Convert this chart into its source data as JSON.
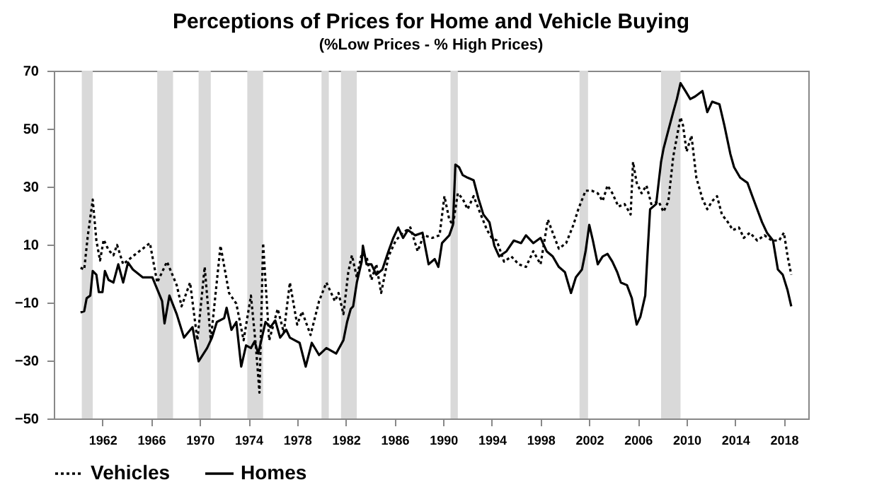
{
  "chart_data": {
    "type": "line",
    "title": "Perceptions of Prices for Home and Vehicle Buying",
    "subtitle": "(%Low Prices  -  % High Prices)",
    "xlim": [
      1958,
      2020
    ],
    "xticks": [
      1962,
      1966,
      1970,
      1974,
      1978,
      1982,
      1986,
      1990,
      1994,
      1998,
      2002,
      2006,
      2010,
      2014,
      2018
    ],
    "ylim": [
      -50,
      70
    ],
    "yticks": [
      -50,
      -30,
      -10,
      10,
      30,
      50,
      70
    ],
    "grid": false,
    "legend": "bottom",
    "bands": [
      {
        "axis": "x",
        "from": 1960.3,
        "to": 1961.2,
        "color": "#d9d9d9"
      },
      {
        "axis": "x",
        "from": 1966.5,
        "to": 1967.8,
        "color": "#d9d9d9"
      },
      {
        "axis": "x",
        "from": 1969.9,
        "to": 1970.9,
        "color": "#d9d9d9"
      },
      {
        "axis": "x",
        "from": 1973.9,
        "to": 1975.2,
        "color": "#d9d9d9"
      },
      {
        "axis": "x",
        "from": 1980.0,
        "to": 1980.6,
        "color": "#d9d9d9"
      },
      {
        "axis": "x",
        "from": 1981.6,
        "to": 1982.9,
        "color": "#d9d9d9"
      },
      {
        "axis": "x",
        "from": 1990.6,
        "to": 1991.2,
        "color": "#d9d9d9"
      },
      {
        "axis": "x",
        "from": 2001.2,
        "to": 2001.9,
        "color": "#d9d9d9"
      },
      {
        "axis": "x",
        "from": 2007.9,
        "to": 2009.5,
        "color": "#d9d9d9"
      }
    ],
    "series": [
      {
        "name": "Vehicles",
        "color": "#000000",
        "line_style": "dotted",
        "x": [
          1960.2,
          1960.5,
          1960.8,
          1961.2,
          1961.5,
          1961.8,
          1962.1,
          1962.5,
          1962.9,
          1963.2,
          1963.7,
          1964.5,
          1965.9,
          1966.5,
          1967.3,
          1968.1,
          1968.5,
          1969.2,
          1969.8,
          1970.4,
          1970.9,
          1971.7,
          1972.4,
          1973.0,
          1973.6,
          1974.2,
          1974.6,
          1974.9,
          1975.2,
          1975.7,
          1976.4,
          1976.9,
          1977.4,
          1978.0,
          1978.4,
          1979.1,
          1979.8,
          1980.4,
          1981.1,
          1981.4,
          1981.8,
          1982.2,
          1982.5,
          1982.9,
          1983.3,
          1983.7,
          1984.1,
          1984.5,
          1984.9,
          1985.5,
          1986.1,
          1986.7,
          1987.3,
          1987.9,
          1988.4,
          1989.1,
          1989.7,
          1990.1,
          1990.5,
          1990.8,
          1991.2,
          1991.6,
          1992.0,
          1992.5,
          1993.0,
          1993.6,
          1994.0,
          1994.4,
          1995.0,
          1995.6,
          1996.2,
          1996.8,
          1997.4,
          1998.0,
          1998.6,
          1999.0,
          1999.5,
          2000.1,
          2000.7,
          2001.1,
          2001.7,
          2002.2,
          2002.7,
          2003.1,
          2003.5,
          2003.9,
          2004.4,
          2004.9,
          2005.4,
          2005.6,
          2005.9,
          2006.3,
          2006.7,
          2007.1,
          2007.7,
          2008.1,
          2008.5,
          2008.9,
          2009.5,
          2009.7,
          2010.0,
          2010.4,
          2010.8,
          2011.3,
          2011.7,
          2012.1,
          2012.5,
          2012.9,
          2013.4,
          2013.8,
          2014.3,
          2014.7,
          2015.2,
          2015.8,
          2016.4,
          2017.0,
          2017.6,
          2018.0,
          2018.3,
          2018.6
        ],
        "values": [
          2,
          1.4,
          13.2,
          25.5,
          11.4,
          4.5,
          11.7,
          8.1,
          6.3,
          9.9,
          3.2,
          6,
          10.5,
          -3.1,
          4.1,
          -4,
          -11.3,
          -3.1,
          -23,
          2.3,
          -23,
          9.6,
          -6.7,
          -10.4,
          -23,
          -7.6,
          -24.8,
          -41.1,
          10.5,
          -23,
          -12.2,
          -20.3,
          -3.1,
          -17.6,
          -13.1,
          -21.2,
          -9.5,
          -3.1,
          -9.5,
          -6.7,
          -14,
          0.5,
          6.3,
          -1.3,
          6.8,
          5.9,
          -2.2,
          3.2,
          -6.7,
          5.9,
          11.4,
          14.1,
          15.9,
          7.7,
          13.2,
          12.3,
          13.2,
          26.7,
          18.6,
          16.8,
          27.7,
          25.8,
          22.2,
          26.7,
          21.3,
          15,
          12.3,
          11.4,
          4.1,
          5.9,
          3.2,
          2.3,
          7.7,
          3.2,
          18.6,
          14.1,
          8.6,
          10.5,
          16.8,
          22.2,
          28.6,
          28.6,
          27.7,
          25,
          30.4,
          27.7,
          23.1,
          24,
          20.4,
          38.5,
          31.3,
          27.7,
          30.4,
          24,
          24.9,
          21.3,
          24.9,
          40.3,
          53.9,
          51.2,
          42.1,
          47.6,
          33.1,
          25.8,
          22.2,
          25,
          26.7,
          20.4,
          17.7,
          15,
          15.9,
          12.3,
          14.1,
          11.4,
          13.2,
          11.4,
          11.4,
          14.1,
          5.9,
          -0.4
        ]
      },
      {
        "name": "Homes",
        "color": "#000000",
        "line_style": "solid",
        "x": [
          1960.2,
          1960.5,
          1960.7,
          1961.0,
          1961.2,
          1961.5,
          1961.7,
          1962.0,
          1962.2,
          1962.5,
          1962.9,
          1963.3,
          1963.7,
          1964.1,
          1964.5,
          1965.3,
          1966.1,
          1966.9,
          1967.1,
          1967.5,
          1968.1,
          1968.7,
          1969.4,
          1969.9,
          1970.6,
          1971.0,
          1971.4,
          1972.0,
          1972.2,
          1972.6,
          1973.0,
          1973.4,
          1973.8,
          1974.2,
          1974.5,
          1974.8,
          1975.4,
          1975.8,
          1976.2,
          1976.6,
          1977.1,
          1977.4,
          1977.8,
          1978.2,
          1978.7,
          1979.2,
          1979.8,
          1980.4,
          1981.2,
          1981.8,
          1982.1,
          1982.4,
          1982.6,
          1982.9,
          1983.3,
          1983.4,
          1983.7,
          1984.1,
          1984.5,
          1985.0,
          1985.5,
          1985.9,
          1986.3,
          1986.7,
          1987.1,
          1987.7,
          1988.3,
          1988.8,
          1989.3,
          1989.6,
          1989.9,
          1990.5,
          1990.8,
          1991.0,
          1991.3,
          1991.6,
          1992.0,
          1992.5,
          1992.9,
          1993.3,
          1993.8,
          1994.2,
          1994.6,
          1995.2,
          1995.8,
          1996.4,
          1996.8,
          1997.4,
          1998.0,
          1998.5,
          1999.0,
          1999.5,
          2000.0,
          2000.5,
          2000.9,
          2001.4,
          2001.7,
          2002.0,
          2002.3,
          2002.7,
          2003.1,
          2003.5,
          2003.9,
          2004.3,
          2004.6,
          2005.1,
          2005.5,
          2005.9,
          2006.2,
          2006.6,
          2006.8,
          2007.0,
          2007.5,
          2007.9,
          2008.1,
          2008.5,
          2008.9,
          2009.2,
          2009.5,
          2009.9,
          2010.3,
          2010.7,
          2011.3,
          2011.7,
          2012.1,
          2012.7,
          2013.1,
          2013.6,
          2013.9,
          2014.4,
          2015.0,
          2015.4,
          2015.8,
          2016.2,
          2016.6,
          2017.1,
          2017.5,
          2017.9,
          2018.3,
          2018.6
        ],
        "values": [
          -13.4,
          -13,
          -8.5,
          -7.6,
          0.9,
          -0.4,
          -6.4,
          -6.4,
          0.9,
          -2.2,
          -3.1,
          3.2,
          -3.1,
          3.8,
          1.4,
          -1.3,
          -1.3,
          -9.5,
          -17.2,
          -7.6,
          -14,
          -22.1,
          -18.5,
          -30.3,
          -25.7,
          -22.1,
          -16.7,
          -15.4,
          -11.8,
          -19.4,
          -16.7,
          -32.1,
          -24.8,
          -25.7,
          -23.4,
          -27.6,
          -16.7,
          -18.5,
          -16.2,
          -22.1,
          -19.4,
          -22.1,
          -23,
          -23.9,
          -32.1,
          -23.9,
          -28.1,
          -25.7,
          -27.6,
          -23,
          -16.7,
          -12.2,
          -11.3,
          -3.1,
          4.1,
          9.6,
          3.2,
          3.2,
          -0.4,
          1.4,
          7.7,
          12.3,
          15.9,
          12.3,
          15,
          13.2,
          14.1,
          3.2,
          5,
          2.3,
          10.5,
          13.2,
          16.8,
          37.6,
          36.7,
          34,
          33.1,
          32.2,
          25.8,
          20.4,
          17.7,
          9.6,
          5.9,
          7.7,
          11.4,
          10.5,
          13.2,
          10.5,
          12.3,
          7.7,
          5.9,
          2.3,
          0.5,
          -6.7,
          -1.3,
          1.4,
          7.7,
          16.8,
          11.4,
          3.2,
          5.9,
          6.8,
          4.1,
          0.5,
          -3.1,
          -4,
          -8.5,
          -17.6,
          -14.9,
          -7.6,
          7.7,
          22.2,
          24,
          38.5,
          43,
          49.4,
          55.7,
          60.2,
          65.7,
          63,
          60.2,
          61.1,
          63,
          55.7,
          59.3,
          58.4,
          51.2,
          41.2,
          36.7,
          33.1,
          31.3,
          26.7,
          22.2,
          17.7,
          14.1,
          11.4,
          1.4,
          -0.4,
          -5.8,
          -11.3
        ]
      }
    ]
  }
}
